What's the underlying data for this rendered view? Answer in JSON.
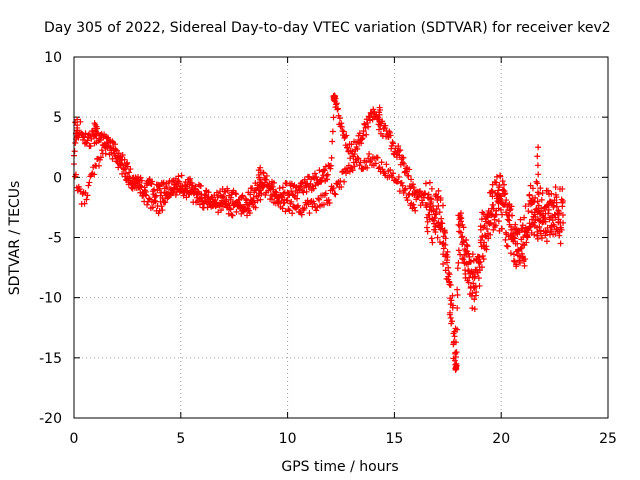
{
  "chart_data": {
    "type": "scatter",
    "title": "Day 305 of 2022, Sidereal Day-to-day VTEC variation (SDTVAR) for receiver kev2",
    "xlabel": "GPS time / hours",
    "ylabel": "SDTVAR / TECUs",
    "xlim": [
      0,
      25
    ],
    "ylim": [
      -20,
      10
    ],
    "xticks": [
      "0",
      "5",
      "10",
      "15",
      "20",
      "25"
    ],
    "yticks": [
      "10",
      "5",
      "0",
      "-5",
      "-10",
      "-15",
      "-20"
    ],
    "grid": true,
    "marker": "+",
    "color": "#ff0000",
    "series": [
      {
        "name": "SDTVAR",
        "shape_x": [
          0.0,
          0.25,
          0.5,
          0.75,
          1.0,
          1.5,
          2.0,
          2.5,
          3.0,
          3.5,
          4.0,
          4.5,
          5.0,
          5.5,
          6.0,
          6.5,
          7.0,
          7.5,
          8.0,
          8.5,
          9.0,
          9.5,
          10.0,
          10.5,
          11.0,
          11.5,
          12.0,
          12.2,
          12.5,
          13.0,
          13.5,
          14.0,
          14.5,
          15.0,
          15.5,
          16.0,
          16.5,
          16.8,
          17.0,
          17.3,
          17.6,
          17.9,
          18.0,
          18.2,
          18.5,
          18.8,
          19.0,
          19.3,
          19.6,
          20.0,
          20.3,
          20.6,
          21.0,
          21.3,
          21.6,
          22.0,
          22.5,
          22.9
        ],
        "shape_y": [
          2.5,
          4.2,
          3.0,
          3.2,
          3.5,
          3.0,
          2.0,
          0.5,
          -0.5,
          -0.8,
          -1.2,
          -1.0,
          -0.5,
          -0.8,
          -1.5,
          -2.0,
          -1.5,
          -1.8,
          -2.2,
          -1.0,
          0.0,
          -1.5,
          -1.0,
          -1.2,
          -0.5,
          0.0,
          0.5,
          6.5,
          4.0,
          2.0,
          3.5,
          5.0,
          4.0,
          2.5,
          1.0,
          -1.5,
          -2.0,
          -3.0,
          -3.0,
          -5.0,
          -10.0,
          -15.5,
          -5.0,
          -4.5,
          -8.0,
          -9.0,
          -6.0,
          -4.0,
          -2.5,
          -2.0,
          -3.5,
          -5.0,
          -6.0,
          -3.0,
          -2.5,
          -3.5,
          -3.0,
          -3.0
        ],
        "lower_x": [
          0.0,
          0.25,
          0.5,
          0.75,
          1.0,
          1.5,
          2.0,
          2.5,
          3.0,
          3.5,
          4.0,
          4.5,
          5.0,
          6.0,
          7.0,
          8.0,
          8.5,
          9.0,
          10.0,
          11.0,
          12.0,
          13.0,
          14.0,
          15.0,
          16.0
        ],
        "lower_y": [
          1.0,
          -1.5,
          -1.8,
          -0.2,
          1.0,
          2.5,
          1.5,
          0.0,
          -1.0,
          -2.0,
          -2.5,
          -1.5,
          -0.8,
          -2.0,
          -2.5,
          -2.8,
          -2.0,
          -1.0,
          -2.5,
          -2.5,
          -1.5,
          1.0,
          1.5,
          0.0,
          -2.5
        ],
        "spikes_x": [
          0.1,
          1.0,
          8.7,
          12.2,
          14.3,
          17.9,
          19.9,
          21.7
        ],
        "spikes_y": [
          4.8,
          4.5,
          0.8,
          6.8,
          5.8,
          -16.0,
          -1.5,
          2.5
        ]
      }
    ]
  }
}
